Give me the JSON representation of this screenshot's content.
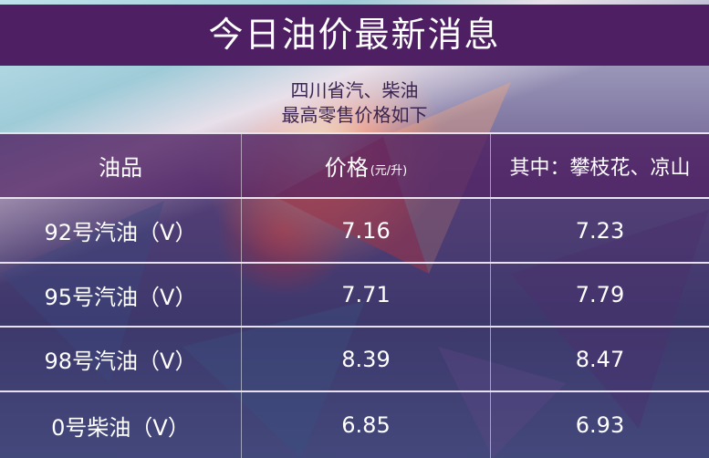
{
  "title": "今日油价最新消息",
  "subtitle": {
    "line1": "四川省汽、柴油",
    "line2": "最高零售价格如下"
  },
  "table": {
    "headers": {
      "product": "油品",
      "price": "价格",
      "price_unit": "(元/升)",
      "special": "其中：攀枝花、凉山"
    },
    "rows": [
      {
        "product": "92号汽油（V）",
        "price": "7.16",
        "special": "7.23"
      },
      {
        "product": "95号汽油（V）",
        "price": "7.71",
        "special": "7.79"
      },
      {
        "product": "98号汽油（V）",
        "price": "8.39",
        "special": "8.47"
      },
      {
        "product": "0号柴油（V）",
        "price": "6.85",
        "special": "6.93"
      }
    ]
  },
  "colors": {
    "title_band": "#4e1f62",
    "header_band": "#4e1f62",
    "text": "#ffffff"
  }
}
